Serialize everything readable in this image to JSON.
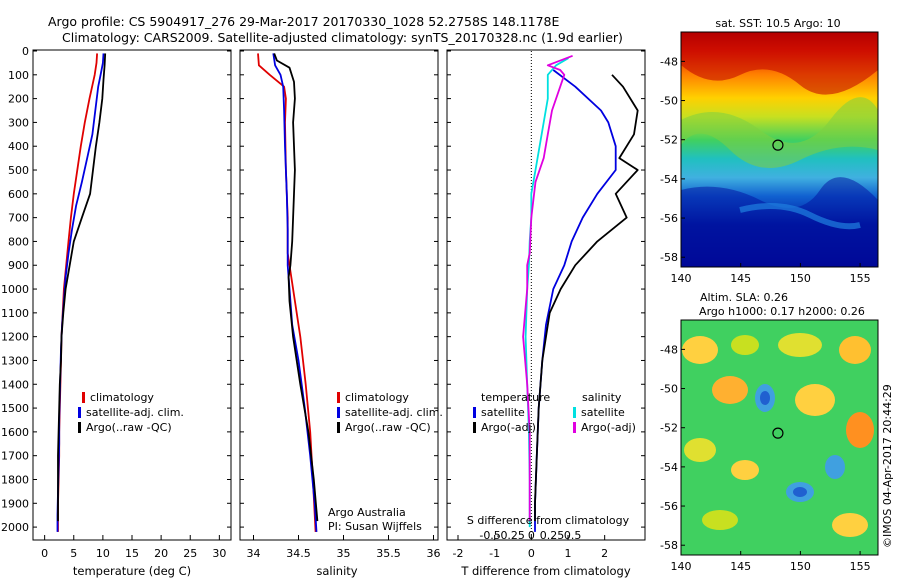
{
  "header": {
    "line1": "Argo profile: CS 5904917_276 29-Mar-2017 20170330_1028 52.2758S 148.1178E",
    "line2": "Climatology: CARS2009. Satellite-adjusted climatology: synTS_20170328.nc (1.9d earlier)"
  },
  "colors": {
    "climatology": "#e00000",
    "satellite": "#0000e0",
    "argo": "#000000",
    "sat_salinity": "#00e0e0",
    "argo_adj_salinity": "#e000e0"
  },
  "credits": {
    "org": "Argo Australia",
    "pi": "PI: Susan Wijffels",
    "watermark": "©IMOS 04-Apr-2017 20:44:29"
  },
  "chart_data": [
    {
      "type": "line",
      "id": "temperature",
      "xlabel": "temperature (deg C)",
      "ylim": [
        2050,
        0
      ],
      "xlim": [
        -2,
        32
      ],
      "yticks": [
        0,
        100,
        200,
        300,
        400,
        500,
        600,
        700,
        800,
        900,
        1000,
        1100,
        1200,
        1300,
        1400,
        1500,
        1600,
        1700,
        1800,
        1900,
        2000
      ],
      "xticks": [
        0,
        5,
        10,
        15,
        20,
        25,
        30
      ],
      "xticklabels": [
        "0",
        "5",
        "10",
        "15",
        "20",
        "25",
        "30"
      ],
      "legend": [
        "climatology",
        "satellite-adj. clim.",
        "Argo(..raw -QC)"
      ],
      "series": [
        {
          "name": "climatology",
          "color": "#e00000",
          "points": [
            [
              9.0,
              10
            ],
            [
              8.9,
              50
            ],
            [
              8.6,
              100
            ],
            [
              7.7,
              200
            ],
            [
              6.9,
              300
            ],
            [
              6.2,
              400
            ],
            [
              5.6,
              500
            ],
            [
              5.0,
              600
            ],
            [
              4.5,
              700
            ],
            [
              4.1,
              800
            ],
            [
              3.7,
              900
            ],
            [
              3.3,
              1000
            ],
            [
              3.1,
              1100
            ],
            [
              2.9,
              1200
            ],
            [
              2.8,
              1300
            ],
            [
              2.7,
              1400
            ],
            [
              2.6,
              1500
            ],
            [
              2.5,
              1600
            ],
            [
              2.5,
              1700
            ],
            [
              2.4,
              1800
            ],
            [
              2.3,
              1900
            ],
            [
              2.3,
              2020
            ]
          ]
        },
        {
          "name": "satellite-adj. clim.",
          "color": "#0000e0",
          "points": [
            [
              10.1,
              10
            ],
            [
              10.0,
              50
            ],
            [
              9.6,
              100
            ],
            [
              9.2,
              150
            ],
            [
              8.7,
              250
            ],
            [
              8.2,
              350
            ],
            [
              7.3,
              450
            ],
            [
              6.4,
              550
            ],
            [
              5.4,
              650
            ],
            [
              4.7,
              750
            ],
            [
              4.1,
              850
            ],
            [
              3.6,
              950
            ],
            [
              3.3,
              1050
            ],
            [
              3.0,
              1150
            ],
            [
              2.8,
              1250
            ],
            [
              2.7,
              1350
            ],
            [
              2.6,
              1450
            ],
            [
              2.5,
              1550
            ],
            [
              2.5,
              1650
            ],
            [
              2.4,
              1750
            ],
            [
              2.3,
              1850
            ],
            [
              2.2,
              1950
            ],
            [
              2.2,
              2020
            ]
          ]
        },
        {
          "name": "Argo(..raw -QC)",
          "color": "#000000",
          "points": [
            [
              10.4,
              10
            ],
            [
              10.3,
              60
            ],
            [
              10.1,
              120
            ],
            [
              9.9,
              200
            ],
            [
              9.4,
              300
            ],
            [
              8.8,
              400
            ],
            [
              8.3,
              500
            ],
            [
              7.8,
              600
            ],
            [
              6.4,
              700
            ],
            [
              5.0,
              800
            ],
            [
              4.3,
              900
            ],
            [
              3.6,
              1000
            ],
            [
              3.2,
              1100
            ],
            [
              2.9,
              1200
            ],
            [
              2.8,
              1300
            ],
            [
              2.6,
              1400
            ],
            [
              2.5,
              1500
            ],
            [
              2.4,
              1600
            ],
            [
              2.3,
              1700
            ],
            [
              2.3,
              1800
            ],
            [
              2.3,
              1900
            ],
            [
              2.3,
              1975
            ]
          ]
        }
      ]
    },
    {
      "type": "line",
      "id": "salinity",
      "xlabel": "salinity",
      "ylim": [
        2050,
        0
      ],
      "xlim": [
        33.85,
        36.05
      ],
      "xticks": [
        34,
        34.5,
        35,
        35.5,
        36
      ],
      "xticklabels": [
        "34",
        "34.5",
        "35",
        "35.5",
        "36"
      ],
      "legend": [
        "climatology",
        "satellite-adj. clim.",
        "Argo(..raw -QC)"
      ],
      "series": [
        {
          "name": "climatology",
          "color": "#e00000",
          "points": [
            [
              34.05,
              10
            ],
            [
              34.06,
              60
            ],
            [
              34.18,
              100
            ],
            [
              34.34,
              150
            ],
            [
              34.36,
              200
            ],
            [
              34.35,
              300
            ],
            [
              34.36,
              500
            ],
            [
              34.38,
              700
            ],
            [
              34.38,
              850
            ],
            [
              34.42,
              950
            ],
            [
              34.46,
              1050
            ],
            [
              34.52,
              1200
            ],
            [
              34.58,
              1400
            ],
            [
              34.63,
              1600
            ],
            [
              34.66,
              1800
            ],
            [
              34.69,
              2020
            ]
          ]
        },
        {
          "name": "satellite-adj. clim.",
          "color": "#0000e0",
          "points": [
            [
              34.22,
              10
            ],
            [
              34.24,
              60
            ],
            [
              34.3,
              100
            ],
            [
              34.33,
              150
            ],
            [
              34.34,
              250
            ],
            [
              34.35,
              400
            ],
            [
              34.37,
              600
            ],
            [
              34.38,
              750
            ],
            [
              34.38,
              900
            ],
            [
              34.4,
              1000
            ],
            [
              34.43,
              1150
            ],
            [
              34.5,
              1300
            ],
            [
              34.57,
              1500
            ],
            [
              34.63,
              1700
            ],
            [
              34.68,
              1900
            ],
            [
              34.7,
              2020
            ]
          ]
        },
        {
          "name": "Argo(..raw -QC)",
          "color": "#000000",
          "points": [
            [
              34.23,
              10
            ],
            [
              34.26,
              40
            ],
            [
              34.4,
              70
            ],
            [
              34.45,
              130
            ],
            [
              34.46,
              200
            ],
            [
              34.44,
              300
            ],
            [
              34.45,
              400
            ],
            [
              34.46,
              500
            ],
            [
              34.45,
              600
            ],
            [
              34.44,
              700
            ],
            [
              34.43,
              800
            ],
            [
              34.41,
              900
            ],
            [
              34.39,
              950
            ],
            [
              34.4,
              1050
            ],
            [
              34.44,
              1200
            ],
            [
              34.52,
              1400
            ],
            [
              34.61,
              1600
            ],
            [
              34.67,
              1800
            ],
            [
              34.71,
              1975
            ]
          ]
        }
      ]
    },
    {
      "type": "line",
      "id": "differences",
      "xlabel": "T difference from climatology",
      "xlabel_top": "S difference from climatology",
      "ylim": [
        2050,
        0
      ],
      "xlim": [
        -2.3,
        3.1
      ],
      "xticks": [
        -2,
        -1,
        0,
        1,
        2
      ],
      "xticklabels": [
        "-2",
        "-1",
        "0",
        "1",
        "2"
      ],
      "sticks": [
        -0.5,
        -0.25,
        0,
        0.25,
        0.5
      ],
      "sticklabels": [
        "-0.5",
        "-0.25",
        "0",
        "0.25",
        "0.5"
      ],
      "legend_t_title": "temperature",
      "legend_s_title": "salinity",
      "legend": [
        "satellite",
        "Argo(-adj)",
        "satellite",
        "Argo(-adj)"
      ],
      "series": [
        {
          "name": "temperature satellite",
          "color": "#0000e0",
          "points": [
            [
              0.6,
              80
            ],
            [
              1.2,
              150
            ],
            [
              1.9,
              250
            ],
            [
              2.1,
              300
            ],
            [
              2.3,
              400
            ],
            [
              2.3,
              500
            ],
            [
              1.8,
              600
            ],
            [
              1.4,
              700
            ],
            [
              1.1,
              800
            ],
            [
              0.9,
              900
            ],
            [
              0.6,
              1000
            ],
            [
              0.4,
              1150
            ],
            [
              0.3,
              1300
            ],
            [
              0.2,
              1500
            ],
            [
              0.15,
              1700
            ],
            [
              0.1,
              1900
            ],
            [
              0.1,
              2020
            ]
          ]
        },
        {
          "name": "temperature Argo(-adj)",
          "color": "#000000",
          "points": [
            [
              2.2,
              100
            ],
            [
              2.5,
              150
            ],
            [
              2.9,
              250
            ],
            [
              2.8,
              350
            ],
            [
              2.4,
              450
            ],
            [
              2.9,
              500
            ],
            [
              2.3,
              600
            ],
            [
              2.6,
              700
            ],
            [
              1.8,
              800
            ],
            [
              1.2,
              900
            ],
            [
              0.8,
              1000
            ],
            [
              0.5,
              1100
            ],
            [
              0.3,
              1300
            ],
            [
              0.2,
              1500
            ],
            [
              0.15,
              1700
            ],
            [
              0.1,
              1900
            ],
            [
              0.1,
              1975
            ]
          ]
        },
        {
          "name": "salinity satellite",
          "color": "#00e0e0",
          "points": [
            [
              0.45,
              30
            ],
            [
              0.3,
              60
            ],
            [
              0.2,
              100
            ],
            [
              0.2,
              200
            ],
            [
              0.15,
              300
            ],
            [
              0.1,
              400
            ],
            [
              0.05,
              500
            ],
            [
              0.0,
              600
            ],
            [
              0.0,
              700
            ],
            [
              -0.02,
              800
            ],
            [
              -0.03,
              900
            ],
            [
              -0.05,
              1000
            ],
            [
              -0.07,
              1200
            ],
            [
              -0.05,
              1400
            ],
            [
              -0.03,
              1600
            ],
            [
              -0.02,
              1800
            ],
            [
              -0.02,
              2000
            ]
          ]
        },
        {
          "name": "salinity Argo(-adj)",
          "color": "#e000e0",
          "points": [
            [
              0.5,
              20
            ],
            [
              0.2,
              60
            ],
            [
              0.35,
              80
            ],
            [
              0.4,
              100
            ],
            [
              0.35,
              150
            ],
            [
              0.25,
              250
            ],
            [
              0.2,
              350
            ],
            [
              0.15,
              450
            ],
            [
              0.05,
              550
            ],
            [
              0.0,
              700
            ],
            [
              -0.02,
              850
            ],
            [
              -0.05,
              900
            ],
            [
              -0.05,
              1000
            ],
            [
              -0.1,
              1200
            ],
            [
              -0.05,
              1400
            ],
            [
              -0.02,
              1600
            ],
            [
              -0.02,
              1800
            ],
            [
              -0.02,
              1975
            ]
          ]
        }
      ]
    },
    {
      "type": "heatmap",
      "id": "sst-map",
      "title": "sat. SST: 10.5 Argo: 10",
      "xlim": [
        140,
        156.5
      ],
      "ylim": [
        -58.5,
        -46.5
      ],
      "xticks": [
        140,
        145,
        150,
        155
      ],
      "xticklabels": [
        "140",
        "145",
        "150",
        "155"
      ],
      "yticks": [
        -48,
        -50,
        -52,
        -54,
        -56,
        -58
      ],
      "yticklabels": [
        "-48",
        "-50",
        "-52",
        "-54",
        "-56",
        "-58"
      ],
      "marker": [
        148.1178,
        -52.2758
      ]
    },
    {
      "type": "heatmap",
      "id": "sla-map",
      "title": "Altim. SLA: 0.26",
      "subtitle": "Argo h1000: 0.17 h2000: 0.26",
      "xlim": [
        140,
        156.5
      ],
      "ylim": [
        -58.5,
        -46.5
      ],
      "xticks": [
        140,
        145,
        150,
        155
      ],
      "xticklabels": [
        "140",
        "145",
        "150",
        "155"
      ],
      "yticks": [
        -48,
        -50,
        -52,
        -54,
        -56,
        -58
      ],
      "yticklabels": [
        "-48",
        "-50",
        "-52",
        "-54",
        "-56",
        "-58"
      ],
      "marker": [
        148.1178,
        -52.2758
      ]
    }
  ]
}
